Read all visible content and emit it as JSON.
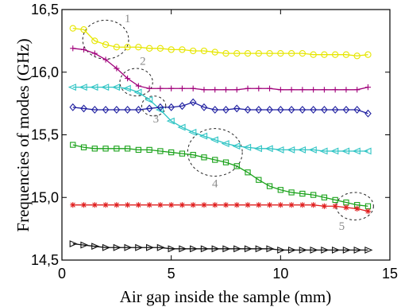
{
  "chart_data": {
    "type": "line",
    "xlabel": "Air gap inside the sample (mm)",
    "ylabel": "Frequencies of modes (GHz)",
    "xlim": [
      0,
      15
    ],
    "ylim": [
      14.5,
      16.5
    ],
    "xticks": [
      0,
      5,
      10,
      15
    ],
    "yticks": [
      14.5,
      15.0,
      15.5,
      16.0,
      16.5
    ],
    "xtick_labels": [
      "0",
      "5",
      "10",
      "15"
    ],
    "ytick_labels": [
      "14,5",
      "15,0",
      "15,5",
      "16,0",
      "16,5"
    ],
    "grid": false,
    "series": [
      {
        "marker": "circle",
        "color": "#e6e600",
        "x": [
          0.5,
          1.0,
          1.5,
          2.0,
          2.5,
          3.0,
          3.5,
          4.0,
          4.5,
          5.0,
          5.5,
          6.0,
          6.5,
          7.0,
          7.5,
          8.0,
          8.5,
          9.0,
          9.5,
          10.0,
          10.5,
          11.0,
          11.5,
          12.0,
          12.5,
          13.0,
          13.5,
          14.0
        ],
        "y": [
          16.35,
          16.34,
          16.25,
          16.22,
          16.2,
          16.2,
          16.2,
          16.19,
          16.19,
          16.18,
          16.18,
          16.17,
          16.17,
          16.16,
          16.15,
          16.15,
          16.15,
          16.15,
          16.15,
          16.15,
          16.15,
          16.15,
          16.14,
          16.14,
          16.14,
          16.14,
          16.13,
          16.14
        ]
      },
      {
        "marker": "plus",
        "color": "#a0007a",
        "x": [
          0.5,
          1.0,
          1.5,
          2.0,
          2.5,
          3.0,
          3.5,
          4.0,
          4.5,
          5.0,
          5.5,
          6.0,
          6.5,
          7.0,
          7.5,
          8.0,
          8.5,
          9.0,
          9.5,
          10.0,
          10.5,
          11.0,
          11.5,
          12.0,
          12.5,
          13.0,
          13.5,
          14.0
        ],
        "y": [
          16.19,
          16.18,
          16.15,
          16.1,
          16.03,
          15.95,
          15.89,
          15.87,
          15.87,
          15.87,
          15.87,
          15.87,
          15.86,
          15.86,
          15.86,
          15.86,
          15.87,
          15.87,
          15.87,
          15.86,
          15.86,
          15.86,
          15.86,
          15.86,
          15.86,
          15.86,
          15.86,
          15.88
        ]
      },
      {
        "marker": "triangle-left",
        "color": "#2ec4c4",
        "x": [
          0.5,
          1.0,
          1.5,
          2.0,
          2.5,
          3.0,
          3.5,
          4.0,
          4.5,
          5.0,
          5.5,
          6.0,
          6.5,
          7.0,
          7.5,
          8.0,
          8.5,
          9.0,
          9.5,
          10.0,
          10.5,
          11.0,
          11.5,
          12.0,
          12.5,
          13.0,
          13.5,
          14.0
        ],
        "y": [
          15.88,
          15.88,
          15.88,
          15.88,
          15.88,
          15.87,
          15.84,
          15.78,
          15.7,
          15.61,
          15.56,
          15.52,
          15.49,
          15.46,
          15.43,
          15.41,
          15.4,
          15.39,
          15.39,
          15.38,
          15.38,
          15.38,
          15.38,
          15.37,
          15.37,
          15.37,
          15.37,
          15.37
        ]
      },
      {
        "marker": "diamond",
        "color": "#1f1fa0",
        "x": [
          0.5,
          1.0,
          1.5,
          2.0,
          2.5,
          3.0,
          3.5,
          4.0,
          4.5,
          5.0,
          5.5,
          6.0,
          6.5,
          7.0,
          7.5,
          8.0,
          8.5,
          9.0,
          9.5,
          10.0,
          10.5,
          11.0,
          11.5,
          12.0,
          12.5,
          13.0,
          13.5,
          14.0
        ],
        "y": [
          15.72,
          15.71,
          15.7,
          15.7,
          15.7,
          15.7,
          15.7,
          15.71,
          15.72,
          15.72,
          15.73,
          15.76,
          15.72,
          15.7,
          15.7,
          15.71,
          15.7,
          15.7,
          15.7,
          15.7,
          15.7,
          15.7,
          15.7,
          15.7,
          15.7,
          15.7,
          15.7,
          15.67
        ]
      },
      {
        "marker": "square",
        "color": "#1aa21a",
        "x": [
          0.5,
          1.0,
          1.5,
          2.0,
          2.5,
          3.0,
          3.5,
          4.0,
          4.5,
          5.0,
          5.5,
          6.0,
          6.5,
          7.0,
          7.5,
          8.0,
          8.5,
          9.0,
          9.5,
          10.0,
          10.5,
          11.0,
          11.5,
          12.0,
          12.5,
          13.0,
          13.5,
          14.0
        ],
        "y": [
          15.42,
          15.4,
          15.39,
          15.39,
          15.39,
          15.39,
          15.38,
          15.38,
          15.37,
          15.36,
          15.35,
          15.34,
          15.32,
          15.3,
          15.28,
          15.25,
          15.2,
          15.14,
          15.09,
          15.06,
          15.04,
          15.03,
          15.02,
          15.0,
          14.98,
          14.96,
          14.94,
          14.93
        ]
      },
      {
        "marker": "asterisk",
        "color": "#e02020",
        "x": [
          0.5,
          1.0,
          1.5,
          2.0,
          2.5,
          3.0,
          3.5,
          4.0,
          4.5,
          5.0,
          5.5,
          6.0,
          6.5,
          7.0,
          7.5,
          8.0,
          8.5,
          9.0,
          9.5,
          10.0,
          10.5,
          11.0,
          11.5,
          12.0,
          12.5,
          13.0,
          13.5,
          14.0
        ],
        "y": [
          14.94,
          14.94,
          14.94,
          14.94,
          14.94,
          14.94,
          14.94,
          14.94,
          14.94,
          14.94,
          14.94,
          14.94,
          14.94,
          14.94,
          14.94,
          14.94,
          14.94,
          14.94,
          14.94,
          14.94,
          14.94,
          14.94,
          14.94,
          14.93,
          14.93,
          14.92,
          14.91,
          14.89
        ]
      },
      {
        "marker": "triangle-right",
        "color": "#111111",
        "x": [
          0.5,
          1.0,
          1.5,
          2.0,
          2.5,
          3.0,
          3.5,
          4.0,
          4.5,
          5.0,
          5.5,
          6.0,
          6.5,
          7.0,
          7.5,
          8.0,
          8.5,
          9.0,
          9.5,
          10.0,
          10.5,
          11.0,
          11.5,
          12.0,
          12.5,
          13.0,
          13.5,
          14.0
        ],
        "y": [
          14.63,
          14.62,
          14.61,
          14.6,
          14.6,
          14.6,
          14.6,
          14.6,
          14.6,
          14.59,
          14.59,
          14.59,
          14.59,
          14.59,
          14.59,
          14.59,
          14.59,
          14.59,
          14.59,
          14.58,
          14.58,
          14.58,
          14.58,
          14.58,
          14.58,
          14.58,
          14.58,
          14.58
        ]
      }
    ],
    "annotations": [
      {
        "label": "1",
        "center": [
          2.0,
          16.26
        ],
        "radius_x": 1.05,
        "radius_y": 0.155,
        "label_at": [
          3.0,
          16.4
        ]
      },
      {
        "label": "2",
        "center": [
          3.4,
          15.92
        ],
        "radius_x": 0.75,
        "radius_y": 0.11,
        "label_at": [
          3.7,
          16.06
        ]
      },
      {
        "label": "3",
        "center": [
          4.2,
          15.73
        ],
        "radius_x": 0.55,
        "radius_y": 0.08,
        "label_at": [
          4.3,
          15.6
        ]
      },
      {
        "label": "4",
        "center": [
          7.0,
          15.36
        ],
        "radius_x": 1.25,
        "radius_y": 0.19,
        "label_at": [
          7.0,
          15.08
        ]
      },
      {
        "label": "5",
        "center": [
          13.4,
          14.93
        ],
        "radius_x": 0.85,
        "radius_y": 0.11,
        "label_at": [
          12.8,
          14.74
        ]
      }
    ]
  }
}
